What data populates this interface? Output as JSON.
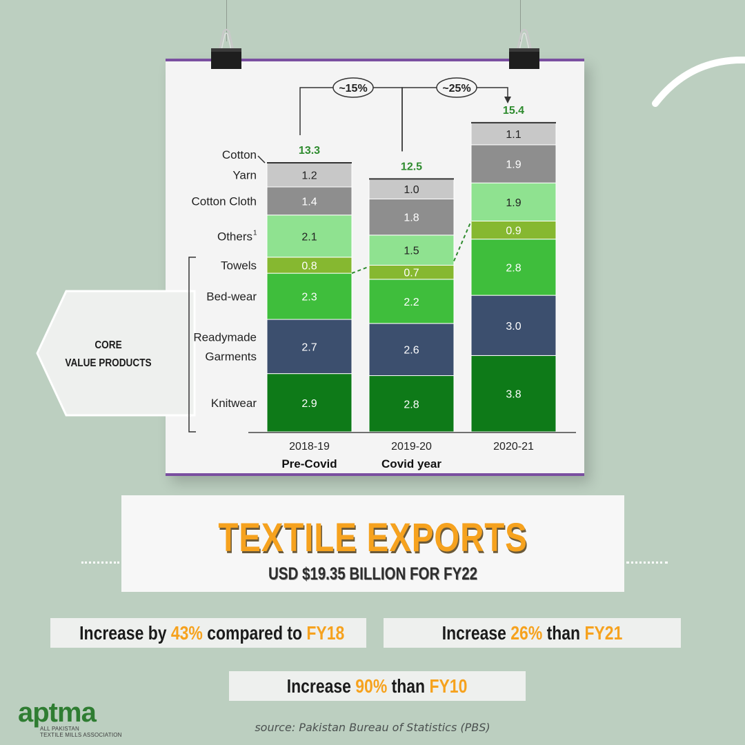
{
  "chart_data": {
    "type": "bar",
    "stacked": true,
    "categories": [
      "2018-19",
      "2019-20",
      "2020-21"
    ],
    "category_sublabels": [
      "Pre-Covid",
      "Covid year",
      ""
    ],
    "totals": [
      "13.3",
      "12.5",
      "15.4"
    ],
    "series": [
      {
        "name": "Knitwear",
        "values": [
          2.9,
          2.8,
          3.8
        ],
        "color": "#0e7a18"
      },
      {
        "name": "Readymade Garments",
        "label_lines": [
          "Readymade",
          "Garments"
        ],
        "values": [
          2.7,
          2.6,
          3.0
        ],
        "color": "#3c4f6e"
      },
      {
        "name": "Bed-wear",
        "values": [
          2.3,
          2.2,
          2.8
        ],
        "color": "#3fbe3c"
      },
      {
        "name": "Towels",
        "values": [
          0.8,
          0.7,
          0.9
        ],
        "color": "#86b830"
      },
      {
        "name": "Others",
        "superscript": "1",
        "values": [
          2.1,
          1.5,
          1.9
        ],
        "color": "#8fe290"
      },
      {
        "name": "Cotton Cloth",
        "values": [
          1.4,
          1.8,
          1.9
        ],
        "color": "#8e8e8e"
      },
      {
        "name": "Yarn",
        "values": [
          1.2,
          1.0,
          1.1
        ],
        "color": "#c8c8c8"
      },
      {
        "name": "Cotton",
        "values": [
          0,
          0,
          0
        ],
        "color": "#b0b0b0"
      }
    ],
    "growth_annotations": [
      {
        "from": "2018-19",
        "to": "2019-20",
        "label": "~15%"
      },
      {
        "from": "2019-20",
        "to": "2020-21",
        "label": "~25%"
      }
    ],
    "bracket_label": [
      "CORE",
      "VALUE PRODUCTS"
    ],
    "total_color": "#2e8b2e"
  },
  "title": "TEXTILE EXPORTS",
  "subtitle": "USD $19.35 BILLION FOR FY22",
  "pills": [
    {
      "pre": "Increase by ",
      "pct": "43%",
      "mid": " compared to ",
      "ref": "FY18"
    },
    {
      "pre": "Increase ",
      "pct": "26%",
      "mid": " than ",
      "ref": "FY21"
    },
    {
      "pre": "Increase ",
      "pct": "90%",
      "mid": " than ",
      "ref": "FY10"
    }
  ],
  "logo": {
    "word": "aptma",
    "line1": "ALL PAKISTAN",
    "line2": "TEXTILE MILLS ASSOCIATION"
  },
  "source": "source: Pakistan Bureau of Statistics (PBS)",
  "colors": {
    "background": "#bccfc0",
    "accent": "#f6a21e",
    "frame": "#7a4fa0"
  }
}
